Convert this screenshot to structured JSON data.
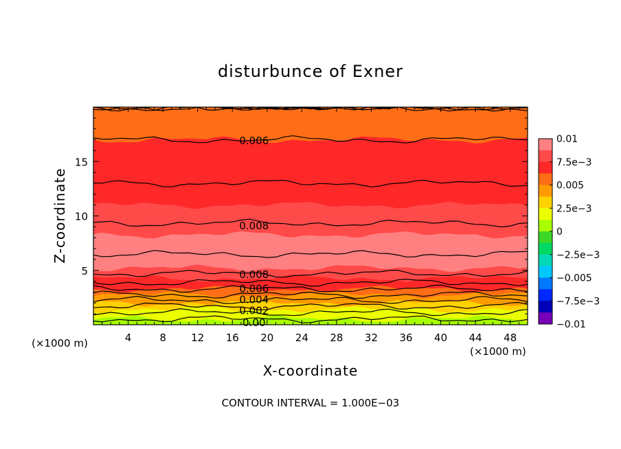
{
  "chart_data": {
    "type": "heatmap",
    "title": "disturbunce of Exner",
    "xlabel": "X-coordinate",
    "ylabel": "Z-coordinate",
    "x_unit_left": "(×1000 m)",
    "x_unit_right": "(×1000 m)",
    "xlim": [
      0,
      50
    ],
    "ylim": [
      0,
      20
    ],
    "x_ticks": [
      4,
      8,
      12,
      16,
      20,
      24,
      28,
      32,
      36,
      40,
      44,
      48
    ],
    "x_tick_labels": [
      "4",
      "8",
      "12",
      "16",
      "20",
      "24",
      "28",
      "32",
      "36",
      "40",
      "44",
      "48"
    ],
    "y_ticks": [
      5,
      10,
      15
    ],
    "y_tick_labels": [
      "5",
      "10",
      "15"
    ],
    "footer": "CONTOUR INTERVAL = 1.000E−03",
    "colorbar": {
      "range": [
        -0.01,
        0.01
      ],
      "tick_values": [
        0.01,
        0.0075,
        0.005,
        0.0025,
        0,
        -0.0025,
        -0.005,
        -0.0075,
        -0.01
      ],
      "tick_labels": [
        "0.01",
        "7.5e−3",
        "0.005",
        "2.5e−3",
        "0",
        "−2.5e−3",
        "−0.005",
        "−7.5e−3",
        "−0.01"
      ],
      "colors": [
        "#ff8080",
        "#ff4a4a",
        "#ff2828",
        "#ff6e16",
        "#ff9b00",
        "#ffd200",
        "#ebff00",
        "#a8ff00",
        "#3cd828",
        "#00d864",
        "#00d8b8",
        "#00c8ff",
        "#0078ff",
        "#0028ff",
        "#0000b8",
        "#7800b8"
      ]
    },
    "field_profile": {
      "z": [
        0,
        0.4,
        1.0,
        2.0,
        3.0,
        4.0,
        4.6,
        5.2,
        7.0,
        9.0,
        11.0,
        13.0,
        15.0,
        17.0,
        19.0,
        20.0
      ],
      "value": [
        0.0,
        0.0008,
        0.0018,
        0.0035,
        0.0055,
        0.0072,
        0.0079,
        0.0085,
        0.0092,
        0.0081,
        0.0075,
        0.007,
        0.0064,
        0.006,
        0.0054,
        0.0052
      ]
    },
    "contour_labels": [
      {
        "text": "0.006",
        "x": 18.5,
        "z": 16.9
      },
      {
        "text": "0.008",
        "x": 18.5,
        "z": 9.1
      },
      {
        "text": "0.008",
        "x": 18.5,
        "z": 4.6
      },
      {
        "text": "0.006",
        "x": 18.5,
        "z": 3.3
      },
      {
        "text": "0.004",
        "x": 18.5,
        "z": 2.3
      },
      {
        "text": "0.002",
        "x": 18.5,
        "z": 1.3
      },
      {
        "text": "0.00",
        "x": 18.5,
        "z": 0.2
      }
    ]
  }
}
